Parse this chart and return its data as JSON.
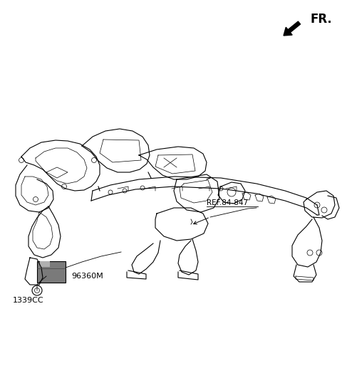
{
  "background_color": "#ffffff",
  "fig_width": 4.8,
  "fig_height": 5.24,
  "dpi": 100,
  "fr_label": "FR.",
  "part_label_96360M": "96360M",
  "part_label_1339CC": "1339CC",
  "ref_label": "REF.84-847",
  "text_color": "#000000",
  "line_color": "#000000",
  "lw_main": 0.8,
  "lw_thin": 0.5,
  "lw_thick": 1.2
}
